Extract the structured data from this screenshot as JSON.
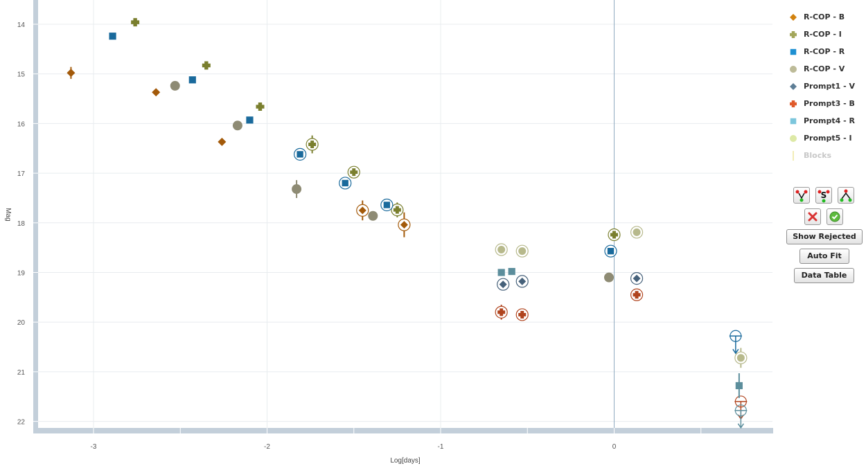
{
  "chart_data": {
    "type": "scatter",
    "xlabel": "Log[days]",
    "ylabel": "Mag",
    "xlim": [
      -3.35,
      0.92
    ],
    "ylim": [
      13.6,
      22.1
    ],
    "y_inverted": true,
    "grid": true,
    "x_ticks": [
      -3,
      -2,
      -1,
      0
    ],
    "y_ticks": [
      14,
      15,
      16,
      17,
      18,
      19,
      20,
      21,
      22
    ],
    "vertical_line_x": 0,
    "legend_position": "right",
    "series": [
      {
        "name": "R-COP - B",
        "marker": "diamond",
        "color": "#A35A0A",
        "points": [
          {
            "x": -3.13,
            "y": 14.98,
            "err": 0.12
          },
          {
            "x": -2.64,
            "y": 15.37
          },
          {
            "x": -2.26,
            "y": 16.37
          },
          {
            "x": -1.45,
            "y": 17.75,
            "err": 0.2,
            "ring": true
          },
          {
            "x": -1.21,
            "y": 18.04,
            "err": 0.25,
            "ring": true
          }
        ]
      },
      {
        "name": "R-COP - I",
        "marker": "plus",
        "color": "#7A7F2E",
        "points": [
          {
            "x": -2.76,
            "y": 13.96
          },
          {
            "x": -2.35,
            "y": 14.83
          },
          {
            "x": -2.04,
            "y": 15.66
          },
          {
            "x": -1.74,
            "y": 16.42,
            "err": 0.18,
            "ring": true
          },
          {
            "x": -1.5,
            "y": 16.98,
            "err": 0.1,
            "ring": true
          },
          {
            "x": -1.25,
            "y": 17.74,
            "err": 0.15,
            "ring": true
          },
          {
            "x": 0.0,
            "y": 18.24,
            "err": 0.1,
            "ring": true
          }
        ]
      },
      {
        "name": "R-COP - R",
        "marker": "square",
        "color": "#1A6A9C",
        "points": [
          {
            "x": -2.89,
            "y": 14.24
          },
          {
            "x": -2.43,
            "y": 15.12
          },
          {
            "x": -2.1,
            "y": 15.93
          },
          {
            "x": -1.81,
            "y": 16.62,
            "ring": true
          },
          {
            "x": -1.55,
            "y": 17.2,
            "ring": true
          },
          {
            "x": -1.31,
            "y": 17.64,
            "ring": true
          },
          {
            "x": -0.02,
            "y": 18.57,
            "ring": true
          },
          {
            "x": 0.7,
            "y": 20.28,
            "ring": true,
            "limit": true
          }
        ]
      },
      {
        "name": "R-COP - V",
        "marker": "circle",
        "color": "#8E8B74",
        "points": [
          {
            "x": -2.53,
            "y": 15.24
          },
          {
            "x": -2.17,
            "y": 16.04
          },
          {
            "x": -1.83,
            "y": 17.32,
            "err": 0.18
          },
          {
            "x": -1.39,
            "y": 17.86
          },
          {
            "x": -0.03,
            "y": 19.1
          }
        ]
      },
      {
        "name": "Prompt1 - V",
        "marker": "diamond",
        "color": "#46617A",
        "points": [
          {
            "x": -0.64,
            "y": 19.24,
            "ring": true
          },
          {
            "x": -0.53,
            "y": 19.18,
            "ring": true
          },
          {
            "x": 0.13,
            "y": 19.12,
            "ring": true
          }
        ]
      },
      {
        "name": "Prompt3 - B",
        "marker": "plus",
        "color": "#B0441E",
        "points": [
          {
            "x": -0.65,
            "y": 19.8,
            "err": 0.15,
            "ring": true
          },
          {
            "x": -0.53,
            "y": 19.85,
            "ring": true
          },
          {
            "x": 0.13,
            "y": 19.45,
            "ring": true
          },
          {
            "x": 0.73,
            "y": 21.6,
            "ring": true,
            "limit": true
          }
        ]
      },
      {
        "name": "Prompt4 - R",
        "marker": "square",
        "color": "#5C8E9C",
        "points": [
          {
            "x": -0.65,
            "y": 19.0
          },
          {
            "x": -0.59,
            "y": 18.98
          },
          {
            "x": 0.72,
            "y": 21.28,
            "err": 0.25
          },
          {
            "x": 0.73,
            "y": 21.78,
            "ring": true,
            "limit": true
          }
        ]
      },
      {
        "name": "Prompt5 - I",
        "marker": "circle",
        "color": "#B7B98C",
        "points": [
          {
            "x": -0.65,
            "y": 18.54,
            "ring": true
          },
          {
            "x": -0.53,
            "y": 18.57,
            "ring": true
          },
          {
            "x": 0.13,
            "y": 18.19,
            "ring": true
          },
          {
            "x": 0.73,
            "y": 20.72,
            "err": 0.2,
            "ring": true
          }
        ]
      }
    ]
  },
  "legend": {
    "items": [
      {
        "label": "R-COP - B",
        "marker": "diamond",
        "color": "#D2820E"
      },
      {
        "label": "R-COP - I",
        "marker": "plus",
        "color": "#A3A65A"
      },
      {
        "label": "R-COP - R",
        "marker": "square",
        "color": "#1E90D2"
      },
      {
        "label": "R-COP - V",
        "marker": "circle",
        "color": "#BDBB98"
      },
      {
        "label": "Prompt1 - V",
        "marker": "diamond",
        "color": "#5E7E96"
      },
      {
        "label": "Prompt3 - B",
        "marker": "plus",
        "color": "#E05A2A"
      },
      {
        "label": "Prompt4 - R",
        "marker": "square",
        "color": "#7CC6DC"
      },
      {
        "label": "Prompt5 - I",
        "marker": "circle",
        "color": "#DDE9A6"
      },
      {
        "label": "Blocks",
        "marker": "line",
        "color": "#F2EDB6",
        "disabled": true
      }
    ]
  },
  "toolbar": {
    "show_rejected": "Show Rejected",
    "auto_fit": "Auto Fit",
    "data_table": "Data Table",
    "icons": [
      "select-points-icon",
      "select-series-icon",
      "select-range-icon",
      "reject-icon",
      "accept-icon"
    ]
  }
}
